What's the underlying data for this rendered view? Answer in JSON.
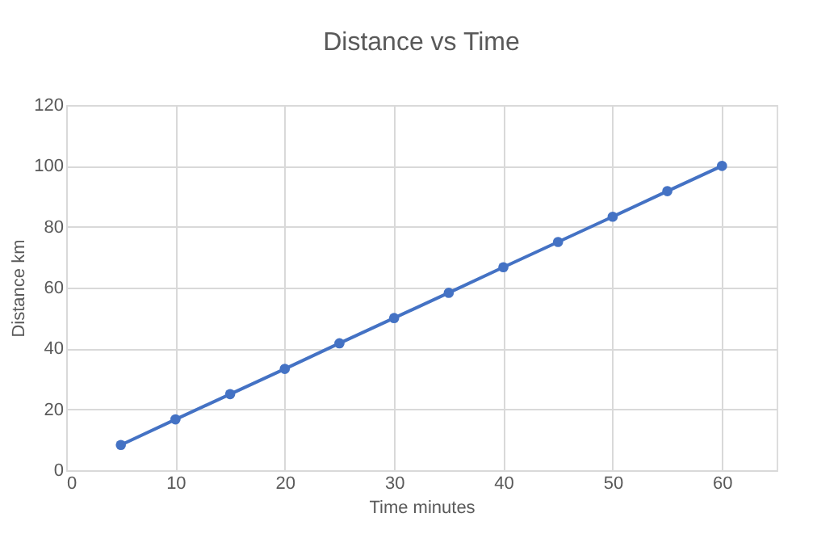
{
  "chart_data": {
    "type": "line",
    "title": "Distance vs Time",
    "xlabel": "Time minutes",
    "ylabel": "Distance km",
    "x": [
      5,
      10,
      15,
      20,
      25,
      30,
      35,
      40,
      45,
      50,
      55,
      60
    ],
    "series": [
      {
        "color": "#4472c4",
        "values": [
          8.3,
          16.7,
          25,
          33.3,
          41.7,
          50,
          58.3,
          66.7,
          75,
          83.3,
          91.7,
          100
        ]
      }
    ],
    "xlim": [
      0,
      65
    ],
    "xticks": [
      0,
      10,
      20,
      30,
      40,
      50,
      60
    ],
    "ylim": [
      0,
      120
    ],
    "yticks": [
      0,
      20,
      40,
      60,
      80,
      100,
      120
    ],
    "grid": true,
    "marker": "circle",
    "line_style": "solid"
  }
}
